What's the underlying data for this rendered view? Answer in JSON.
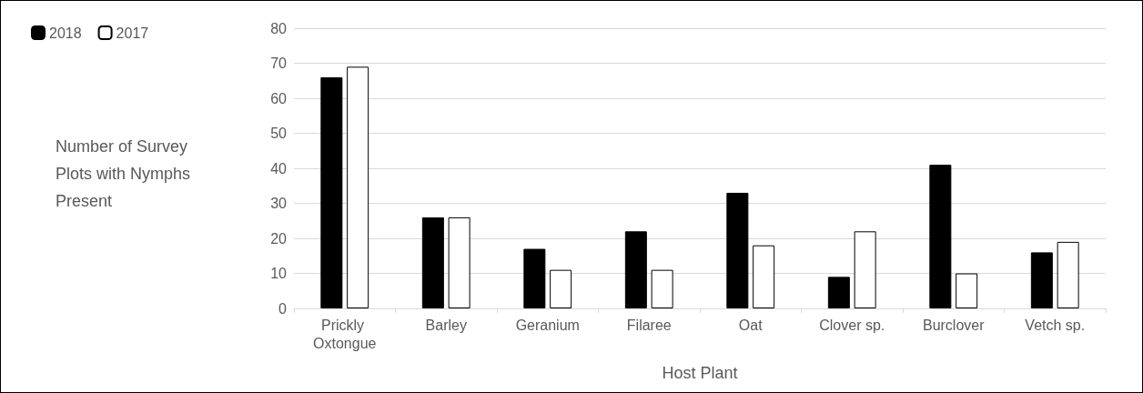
{
  "chart_data": {
    "type": "bar",
    "xlabel": "Host Plant",
    "ylabel": "Number of Survey Plots with Nymphs Present",
    "categories": [
      "Prickly Oxtongue",
      "Barley",
      "Geranium",
      "Filaree",
      "Oat",
      "Clover sp.",
      "Burclover",
      "Vetch sp."
    ],
    "series": [
      {
        "name": "2018",
        "color": "#000000",
        "values": [
          66,
          26,
          17,
          22,
          33,
          9,
          41,
          16
        ]
      },
      {
        "name": "2017",
        "color": "#ffffff",
        "values": [
          69,
          26,
          11,
          11,
          18,
          22,
          10,
          19
        ]
      }
    ],
    "ylim": [
      0,
      80
    ],
    "yticks": [
      0,
      10,
      20,
      30,
      40,
      50,
      60,
      70,
      80
    ],
    "grid": "y",
    "legend": "top left"
  }
}
